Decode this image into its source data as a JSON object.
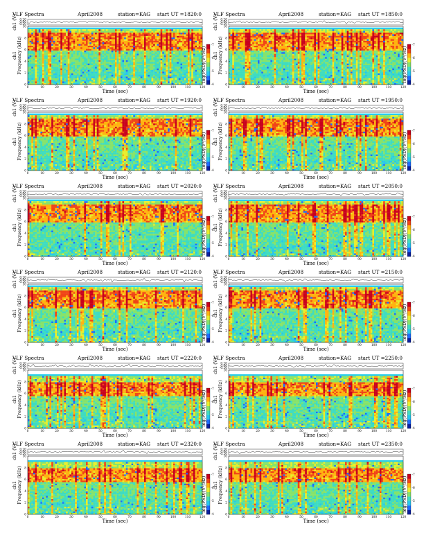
{
  "panel_titles": {
    "instrument": "VLF Spectra",
    "date": "April2008",
    "station": "station=KAG"
  },
  "axis_labels": {
    "waveform": "ch1 (V)",
    "channel": "ch1",
    "frequency": "Frequency  (kHz)",
    "time": "Time  (sec)",
    "colorbar": "log(PSD)(V²/Hz)"
  },
  "colors": {
    "colormap": [
      "#0a1f9e",
      "#1d6bff",
      "#25c6ef",
      "#3fdcc0",
      "#86e36a",
      "#e8ee2b",
      "#ffb30f",
      "#f04416",
      "#c8001d"
    ],
    "background_band": "#29cdea",
    "waveform": "#000000"
  },
  "chart_data": [
    {
      "type": "heatmap",
      "title": "VLF Spectra   April2008   station=KAG   start  UT  =1820:0",
      "start_ut": "start  UT  =1820:0",
      "xlabel": "Time  (sec)",
      "ylabel": "Frequency  (kHz)",
      "x_range": [
        0,
        120
      ],
      "y_range": [
        0,
        10
      ],
      "xticks": [
        "0",
        "10",
        "20",
        "30",
        "40",
        "50",
        "60",
        "70",
        "80",
        "90",
        "100",
        "110",
        "120"
      ],
      "yticks": [
        "0",
        "2",
        "4",
        "6",
        "8",
        "10"
      ],
      "wave_yticks": [
        "0.20",
        "0.00",
        "-0.20"
      ],
      "colorbar_ticks": [
        "7",
        "6",
        "5",
        "4"
      ],
      "emission_band_khz": [
        6,
        9
      ],
      "spectral_ceiling_khz": 9.5
    },
    {
      "type": "heatmap",
      "title": "VLF Spectra   April2008   station=KAG   start  UT  =1850:0",
      "start_ut": "start  UT  =1850:0",
      "xlabel": "Time  (sec)",
      "ylabel": "Frequency  (kHz)",
      "x_range": [
        0,
        120
      ],
      "y_range": [
        0,
        10
      ],
      "xticks": [
        "0",
        "10",
        "20",
        "30",
        "40",
        "50",
        "60",
        "70",
        "80",
        "90",
        "100",
        "110",
        "120"
      ],
      "yticks": [
        "0",
        "2",
        "4",
        "6",
        "8",
        "10"
      ],
      "wave_yticks": [
        "0.20",
        "0.00",
        "-0.20"
      ],
      "colorbar_ticks": [
        "7",
        "6",
        "5",
        "4"
      ],
      "emission_band_khz": [
        6,
        9
      ],
      "spectral_ceiling_khz": 9.5
    },
    {
      "type": "heatmap",
      "title": "VLF Spectra   April2008   station=KAG   start  UT  =1920:0",
      "start_ut": "start  UT  =1920:0",
      "xlabel": "Time  (sec)",
      "ylabel": "Frequency  (kHz)",
      "x_range": [
        0,
        120
      ],
      "y_range": [
        0,
        10
      ],
      "xticks": [
        "0",
        "10",
        "20",
        "30",
        "40",
        "50",
        "60",
        "70",
        "80",
        "90",
        "100",
        "110",
        "120"
      ],
      "yticks": [
        "0",
        "2",
        "4",
        "6",
        "8",
        "10"
      ],
      "wave_yticks": [
        "0.20",
        "0.00",
        "-0.20"
      ],
      "colorbar_ticks": [
        "7",
        "6",
        "5",
        "4"
      ],
      "emission_band_khz": [
        6,
        9
      ],
      "spectral_ceiling_khz": 9.5
    },
    {
      "type": "heatmap",
      "title": "VLF Spectra   April2008   station=KAG   start  UT  =1950:0",
      "start_ut": "start  UT  =1950:0",
      "xlabel": "Time  (sec)",
      "ylabel": "Frequency  (kHz)",
      "x_range": [
        0,
        120
      ],
      "y_range": [
        0,
        10
      ],
      "xticks": [
        "0",
        "10",
        "20",
        "30",
        "40",
        "50",
        "60",
        "70",
        "80",
        "90",
        "100",
        "110",
        "120"
      ],
      "yticks": [
        "0",
        "2",
        "4",
        "6",
        "8",
        "10"
      ],
      "wave_yticks": [
        "0.20",
        "0.00",
        "-0.20"
      ],
      "colorbar_ticks": [
        "7",
        "6",
        "5",
        "4"
      ],
      "emission_band_khz": [
        6,
        9
      ],
      "spectral_ceiling_khz": 9.5
    },
    {
      "type": "heatmap",
      "title": "VLF Spectra   April2008   station=KAG   start  UT  =2020:0",
      "start_ut": "start  UT  =2020:0",
      "xlabel": "Time  (sec)",
      "ylabel": "Frequency  (kHz)",
      "x_range": [
        0,
        120
      ],
      "y_range": [
        0,
        10
      ],
      "xticks": [
        "0",
        "10",
        "20",
        "30",
        "40",
        "50",
        "60",
        "70",
        "80",
        "90",
        "100",
        "110",
        "120"
      ],
      "yticks": [
        "0",
        "2",
        "4",
        "6",
        "8",
        "10"
      ],
      "wave_yticks": [
        "0.20",
        "0.00",
        "-0.20"
      ],
      "colorbar_ticks": [
        "7",
        "6",
        "5",
        "4"
      ],
      "emission_band_khz": [
        6,
        9
      ],
      "spectral_ceiling_khz": 9.5
    },
    {
      "type": "heatmap",
      "title": "VLF Spectra   April2008   station=KAG   start  UT  =2050:0",
      "start_ut": "start  UT  =2050:0",
      "xlabel": "Time  (sec)",
      "ylabel": "Frequency  (kHz)",
      "x_range": [
        0,
        120
      ],
      "y_range": [
        0,
        10
      ],
      "xticks": [
        "0",
        "10",
        "20",
        "30",
        "40",
        "50",
        "60",
        "70",
        "80",
        "90",
        "100",
        "110",
        "120"
      ],
      "yticks": [
        "0",
        "2",
        "4",
        "6",
        "8",
        "10"
      ],
      "wave_yticks": [
        "0.20",
        "0.00",
        "-0.20"
      ],
      "colorbar_ticks": [
        "7",
        "6",
        "5",
        "4"
      ],
      "emission_band_khz": [
        6,
        9
      ],
      "spectral_ceiling_khz": 9.5
    },
    {
      "type": "heatmap",
      "title": "VLF Spectra   April2008   station=KAG   start  UT  =2120:0",
      "start_ut": "start  UT  =2120:0",
      "xlabel": "Time  (sec)",
      "ylabel": "Frequency  (kHz)",
      "x_range": [
        0,
        120
      ],
      "y_range": [
        0,
        10
      ],
      "xticks": [
        "0",
        "10",
        "20",
        "30",
        "40",
        "50",
        "60",
        "70",
        "80",
        "90",
        "100",
        "110",
        "120"
      ],
      "yticks": [
        "0",
        "2",
        "4",
        "6",
        "8",
        "10"
      ],
      "wave_yticks": [
        "0.20",
        "0.00",
        "-0.20"
      ],
      "colorbar_ticks": [
        "7",
        "6",
        "5",
        "4"
      ],
      "emission_band_khz": [
        6,
        9
      ],
      "spectral_ceiling_khz": 9.5
    },
    {
      "type": "heatmap",
      "title": "VLF Spectra   April2008   station=KAG   start  UT  =2150:0",
      "start_ut": "start  UT  =2150:0",
      "xlabel": "Time  (sec)",
      "ylabel": "Frequency  (kHz)",
      "x_range": [
        0,
        120
      ],
      "y_range": [
        0,
        10
      ],
      "xticks": [
        "0",
        "10",
        "20",
        "30",
        "40",
        "50",
        "60",
        "70",
        "80",
        "90",
        "100",
        "110",
        "120"
      ],
      "yticks": [
        "0",
        "2",
        "4",
        "6",
        "8",
        "10"
      ],
      "wave_yticks": [
        "0.20",
        "0.00",
        "-0.20"
      ],
      "colorbar_ticks": [
        "7",
        "6",
        "5",
        "4"
      ],
      "emission_band_khz": [
        6,
        9
      ],
      "spectral_ceiling_khz": 9.5
    },
    {
      "type": "heatmap",
      "title": "VLF Spectra   April2008   station=KAG   start  UT  =2220:0",
      "start_ut": "start  UT  =2220:0",
      "xlabel": "Time  (sec)",
      "ylabel": "Frequency  (kHz)",
      "x_range": [
        0,
        120
      ],
      "y_range": [
        0,
        10
      ],
      "xticks": [
        "0",
        "10",
        "20",
        "30",
        "40",
        "50",
        "60",
        "70",
        "80",
        "90",
        "100",
        "110",
        "120"
      ],
      "yticks": [
        "0",
        "2",
        "4",
        "6",
        "8",
        "10"
      ],
      "wave_yticks": [
        "0.20",
        "0.00",
        "-0.20"
      ],
      "colorbar_ticks": [
        "7",
        "6",
        "5",
        "4"
      ],
      "emission_band_khz": [
        5.5,
        8
      ],
      "spectral_ceiling_khz": 9.0
    },
    {
      "type": "heatmap",
      "title": "VLF Spectra   April2008   station=KAG   start  UT  =2250:0",
      "start_ut": "start  UT  =2250:0",
      "xlabel": "Time  (sec)",
      "ylabel": "Frequency  (kHz)",
      "x_range": [
        0,
        120
      ],
      "y_range": [
        0,
        10
      ],
      "xticks": [
        "0",
        "10",
        "20",
        "30",
        "40",
        "50",
        "60",
        "70",
        "80",
        "90",
        "100",
        "110",
        "120"
      ],
      "yticks": [
        "0",
        "2",
        "4",
        "6",
        "8",
        "10"
      ],
      "wave_yticks": [
        "0.20",
        "0.00",
        "-0.20"
      ],
      "colorbar_ticks": [
        "7",
        "6",
        "5",
        "4"
      ],
      "emission_band_khz": [
        5.5,
        8
      ],
      "spectral_ceiling_khz": 9.0
    },
    {
      "type": "heatmap",
      "title": "VLF Spectra   April2008   station=KAG   start  UT  =2320:0",
      "start_ut": "start  UT  =2320:0",
      "xlabel": "Time  (sec)",
      "ylabel": "Frequency  (kHz)",
      "x_range": [
        0,
        120
      ],
      "y_range": [
        0,
        10
      ],
      "xticks": [
        "0",
        "10",
        "20",
        "30",
        "40",
        "50",
        "60",
        "70",
        "80",
        "90",
        "100",
        "110",
        "120"
      ],
      "yticks": [
        "0",
        "2",
        "4",
        "6",
        "8",
        "10"
      ],
      "wave_yticks": [
        "0.20",
        "0.00",
        "-0.20"
      ],
      "colorbar_ticks": [
        "7",
        "6",
        "5",
        "4"
      ],
      "emission_band_khz": [
        5.5,
        8
      ],
      "spectral_ceiling_khz": 9.0
    },
    {
      "type": "heatmap",
      "title": "VLF Spectra   April2008   station=KAG   start  UT  =2350:0",
      "start_ut": "start  UT  =2350:0",
      "xlabel": "Time  (sec)",
      "ylabel": "Frequency  (kHz)",
      "x_range": [
        0,
        120
      ],
      "y_range": [
        0,
        10
      ],
      "xticks": [
        "0",
        "10",
        "20",
        "30",
        "40",
        "50",
        "60",
        "70",
        "80",
        "90",
        "100",
        "110",
        "120"
      ],
      "yticks": [
        "0",
        "2",
        "4",
        "6",
        "8",
        "10"
      ],
      "wave_yticks": [
        "0.20",
        "0.00",
        "-0.20"
      ],
      "colorbar_ticks": [
        "7",
        "6",
        "5",
        "4"
      ],
      "emission_band_khz": [
        5.5,
        8
      ],
      "spectral_ceiling_khz": 9.0
    }
  ]
}
